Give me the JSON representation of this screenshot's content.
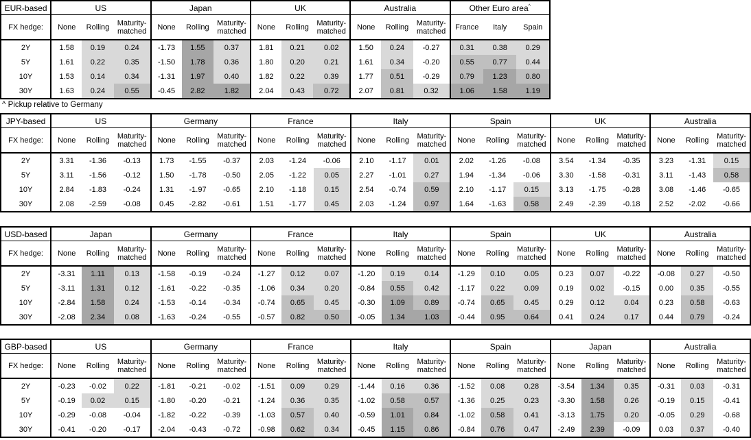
{
  "note": "^ Pickup relative to Germany",
  "fx_hedge_label": "FX hedge:",
  "tenors": [
    "2Y",
    "5Y",
    "10Y",
    "30Y"
  ],
  "hedge_columns": [
    "None",
    "Rolling",
    "Maturity-matched"
  ],
  "colors": {
    "background": "#ffffff",
    "border": "#000000",
    "text": "#000000",
    "shade_1": "#d9d9d9",
    "shade_2": "#bfbfbf",
    "shade_3": "#a6a6a6"
  },
  "tables": [
    {
      "id": "eur-based",
      "base_label": "EUR-based",
      "groups": [
        {
          "name": "US",
          "values": [
            [
              1.58,
              0.19,
              0.24
            ],
            [
              1.61,
              0.22,
              0.35
            ],
            [
              1.53,
              0.14,
              0.34
            ],
            [
              1.63,
              0.24,
              0.55
            ]
          ]
        },
        {
          "name": "Japan",
          "values": [
            [
              -1.73,
              1.55,
              0.37
            ],
            [
              -1.5,
              1.78,
              0.36
            ],
            [
              -1.31,
              1.97,
              0.4
            ],
            [
              -0.45,
              2.82,
              1.82
            ]
          ]
        },
        {
          "name": "UK",
          "values": [
            [
              1.81,
              0.21,
              0.02
            ],
            [
              1.8,
              0.2,
              0.21
            ],
            [
              1.82,
              0.22,
              0.39
            ],
            [
              2.04,
              0.43,
              0.72
            ]
          ]
        },
        {
          "name": "Australia",
          "values": [
            [
              1.5,
              0.24,
              -0.27
            ],
            [
              1.61,
              0.34,
              -0.2
            ],
            [
              1.77,
              0.51,
              -0.29
            ],
            [
              2.07,
              0.81,
              0.32
            ]
          ]
        },
        {
          "name": "Other Euro area",
          "sup": "^",
          "columns": [
            "France",
            "Italy",
            "Spain"
          ],
          "shade_all": true,
          "values": [
            [
              0.31,
              0.38,
              0.29
            ],
            [
              0.55,
              0.77,
              0.44
            ],
            [
              0.79,
              1.23,
              0.8
            ],
            [
              1.06,
              1.58,
              1.19
            ]
          ]
        }
      ]
    },
    {
      "id": "jpy-based",
      "base_label": "JPY-based",
      "groups": [
        {
          "name": "US",
          "values": [
            [
              3.31,
              -1.36,
              -0.13
            ],
            [
              3.11,
              -1.56,
              -0.12
            ],
            [
              2.84,
              -1.83,
              -0.24
            ],
            [
              2.08,
              -2.59,
              -0.08
            ]
          ]
        },
        {
          "name": "Germany",
          "values": [
            [
              1.73,
              -1.55,
              -0.37
            ],
            [
              1.5,
              -1.78,
              -0.5
            ],
            [
              1.31,
              -1.97,
              -0.65
            ],
            [
              0.45,
              -2.82,
              -0.61
            ]
          ]
        },
        {
          "name": "France",
          "values": [
            [
              2.03,
              -1.24,
              -0.06
            ],
            [
              2.05,
              -1.22,
              0.05
            ],
            [
              2.1,
              -1.18,
              0.15
            ],
            [
              1.51,
              -1.77,
              0.45
            ]
          ]
        },
        {
          "name": "Italy",
          "values": [
            [
              2.1,
              -1.17,
              0.01
            ],
            [
              2.27,
              -1.01,
              0.27
            ],
            [
              2.54,
              -0.74,
              0.59
            ],
            [
              2.03,
              -1.24,
              0.97
            ]
          ]
        },
        {
          "name": "Spain",
          "values": [
            [
              2.02,
              -1.26,
              -0.08
            ],
            [
              1.94,
              -1.34,
              -0.06
            ],
            [
              2.1,
              -1.17,
              0.15
            ],
            [
              1.64,
              -1.63,
              0.58
            ]
          ]
        },
        {
          "name": "UK",
          "values": [
            [
              3.54,
              -1.34,
              -0.35
            ],
            [
              3.3,
              -1.58,
              -0.31
            ],
            [
              3.13,
              -1.75,
              -0.28
            ],
            [
              2.49,
              -2.39,
              -0.18
            ]
          ]
        },
        {
          "name": "Australia",
          "values": [
            [
              3.23,
              -1.31,
              0.15
            ],
            [
              3.11,
              -1.43,
              0.58
            ],
            [
              3.08,
              -1.46,
              -0.65
            ],
            [
              2.52,
              -2.02,
              -0.66
            ]
          ]
        }
      ]
    },
    {
      "id": "usd-based",
      "base_label": "USD-based",
      "groups": [
        {
          "name": "Japan",
          "values": [
            [
              -3.31,
              1.11,
              0.13
            ],
            [
              -3.11,
              1.31,
              0.12
            ],
            [
              -2.84,
              1.58,
              0.24
            ],
            [
              -2.08,
              2.34,
              0.08
            ]
          ]
        },
        {
          "name": "Germany",
          "values": [
            [
              -1.58,
              -0.19,
              -0.24
            ],
            [
              -1.61,
              -0.22,
              -0.35
            ],
            [
              -1.53,
              -0.14,
              -0.34
            ],
            [
              -1.63,
              -0.24,
              -0.55
            ]
          ]
        },
        {
          "name": "France",
          "values": [
            [
              -1.27,
              0.12,
              0.07
            ],
            [
              -1.06,
              0.34,
              0.2
            ],
            [
              -0.74,
              0.65,
              0.45
            ],
            [
              -0.57,
              0.82,
              0.5
            ]
          ]
        },
        {
          "name": "Italy",
          "values": [
            [
              -1.2,
              0.19,
              0.14
            ],
            [
              -0.84,
              0.55,
              0.42
            ],
            [
              -0.3,
              1.09,
              0.89
            ],
            [
              -0.05,
              1.34,
              1.03
            ]
          ]
        },
        {
          "name": "Spain",
          "values": [
            [
              -1.29,
              0.1,
              0.05
            ],
            [
              -1.17,
              0.22,
              0.09
            ],
            [
              -0.74,
              0.65,
              0.45
            ],
            [
              -0.44,
              0.95,
              0.64
            ]
          ]
        },
        {
          "name": "UK",
          "values": [
            [
              0.23,
              0.07,
              -0.22
            ],
            [
              0.19,
              0.02,
              -0.15
            ],
            [
              0.29,
              0.12,
              0.04
            ],
            [
              0.41,
              0.24,
              0.17
            ]
          ]
        },
        {
          "name": "Australia",
          "values": [
            [
              -0.08,
              0.27,
              -0.5
            ],
            [
              0.0,
              0.35,
              -0.55
            ],
            [
              0.23,
              0.58,
              -0.63
            ],
            [
              0.44,
              0.79,
              -0.24
            ]
          ]
        }
      ]
    },
    {
      "id": "gbp-based",
      "base_label": "GBP-based",
      "groups": [
        {
          "name": "US",
          "values": [
            [
              -0.23,
              -0.02,
              0.22
            ],
            [
              -0.19,
              0.02,
              0.15
            ],
            [
              -0.29,
              -0.08,
              -0.04
            ],
            [
              -0.41,
              -0.2,
              -0.17
            ]
          ]
        },
        {
          "name": "Germany",
          "values": [
            [
              -1.81,
              -0.21,
              -0.02
            ],
            [
              -1.8,
              -0.2,
              -0.21
            ],
            [
              -1.82,
              -0.22,
              -0.39
            ],
            [
              -2.04,
              -0.43,
              -0.72
            ]
          ]
        },
        {
          "name": "France",
          "values": [
            [
              -1.51,
              0.09,
              0.29
            ],
            [
              -1.24,
              0.36,
              0.35
            ],
            [
              -1.03,
              0.57,
              0.4
            ],
            [
              -0.98,
              0.62,
              0.34
            ]
          ]
        },
        {
          "name": "Italy",
          "values": [
            [
              -1.44,
              0.16,
              0.36
            ],
            [
              -1.02,
              0.58,
              0.57
            ],
            [
              -0.59,
              1.01,
              0.84
            ],
            [
              -0.45,
              1.15,
              0.86
            ]
          ]
        },
        {
          "name": "Spain",
          "values": [
            [
              -1.52,
              0.08,
              0.28
            ],
            [
              -1.36,
              0.25,
              0.23
            ],
            [
              -1.02,
              0.58,
              0.41
            ],
            [
              -0.84,
              0.76,
              0.47
            ]
          ]
        },
        {
          "name": "Japan",
          "values": [
            [
              -3.54,
              1.34,
              0.35
            ],
            [
              -3.3,
              1.58,
              0.26
            ],
            [
              -3.13,
              1.75,
              0.2
            ],
            [
              -2.49,
              2.39,
              -0.09
            ]
          ]
        },
        {
          "name": "Australia",
          "values": [
            [
              -0.31,
              0.03,
              -0.31
            ],
            [
              -0.19,
              0.15,
              -0.41
            ],
            [
              -0.05,
              0.29,
              -0.68
            ],
            [
              0.03,
              0.37,
              -0.4
            ]
          ]
        }
      ]
    }
  ]
}
